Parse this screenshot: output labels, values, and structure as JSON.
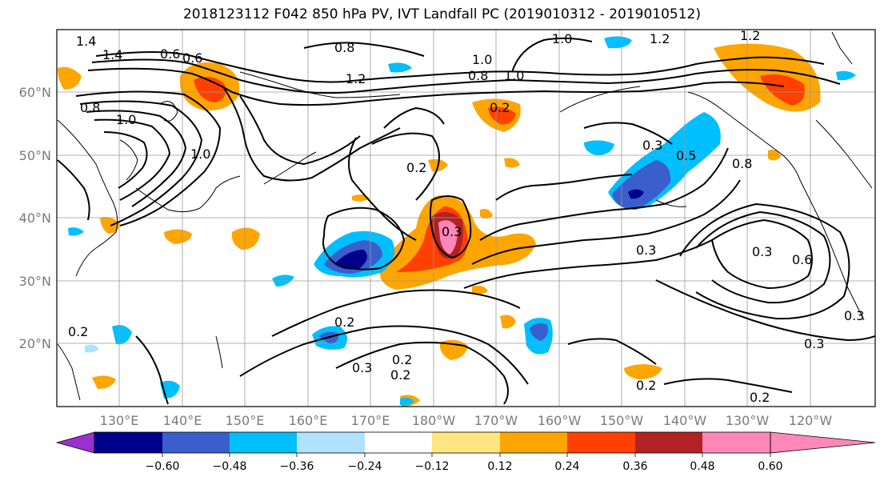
{
  "title": "2018123112 F042 850 hPa PV, IVT Landfall PC (2019010312 - 2019010512)",
  "lat_labels": [
    "60°N",
    "50°N",
    "40°N",
    "30°N",
    "20°N"
  ],
  "lon_labels": [
    "130°E",
    "140°E",
    "150°E",
    "160°E",
    "170°E",
    "180°W",
    "170°W",
    "160°W",
    "150°W",
    "140°W",
    "130°W",
    "120°W"
  ],
  "contour_labels": [
    "1.4",
    "1.4",
    "0.6",
    "0.6",
    "0.8",
    "1.0",
    "1.2",
    "1.0",
    "0.8",
    "1.0",
    "1.2",
    "1.2",
    "1.0",
    "1.0",
    "0.8",
    "0.2",
    "0.3",
    "0.5",
    "0.8",
    "0.2",
    "0.3",
    "0.3",
    "0.2",
    "0.3",
    "0.2",
    "0.2",
    "0.2",
    "0.2",
    "0.3",
    "0.2",
    "0.3",
    "0.6",
    "0.3"
  ],
  "colorbar": {
    "ticks": [
      "−0.60",
      "−0.48",
      "−0.36",
      "−0.24",
      "−0.12",
      "0.12",
      "0.24",
      "0.36",
      "0.48",
      "0.60"
    ],
    "colors": [
      "#9b30d0",
      "#00008b",
      "#3a5fcd",
      "#00bfff",
      "#b0e2ff",
      "#ffffff",
      "#ffe680",
      "#ffa500",
      "#ff4000",
      "#b22222",
      "#ff88b8"
    ]
  }
}
